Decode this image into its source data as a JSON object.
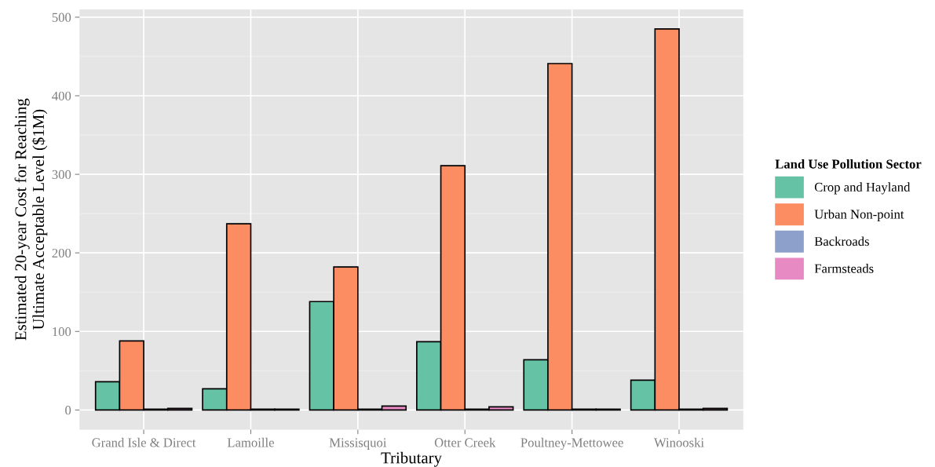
{
  "chart_data": {
    "type": "bar",
    "xlabel": "Tributary",
    "ylabel": "Estimated 20-year Cost for Reaching\nUltimate Acceptable Level ($1M)",
    "legend_title": "Land Use Pollution Sector",
    "categories": [
      "Grand Isle & Direct",
      "Lamoille",
      "Missisquoi",
      "Otter Creek",
      "Poultney-Mettowee",
      "Winooski"
    ],
    "series": [
      {
        "name": "Crop and Hayland",
        "color": "#66c2a5",
        "values": [
          36,
          27,
          138,
          87,
          64,
          38
        ]
      },
      {
        "name": "Urban Non-point",
        "color": "#fc8d62",
        "values": [
          88,
          237,
          182,
          311,
          441,
          485
        ]
      },
      {
        "name": "Backroads",
        "color": "#8da0cb",
        "values": [
          1,
          1,
          1,
          1,
          1,
          1
        ]
      },
      {
        "name": "Farmsteads",
        "color": "#e78ac3",
        "values": [
          2,
          1,
          5,
          4,
          1,
          2
        ]
      }
    ],
    "ylim": [
      -25,
      510
    ],
    "yticks": [
      0,
      100,
      200,
      300,
      400,
      500
    ],
    "grid": true,
    "legend": "right"
  }
}
